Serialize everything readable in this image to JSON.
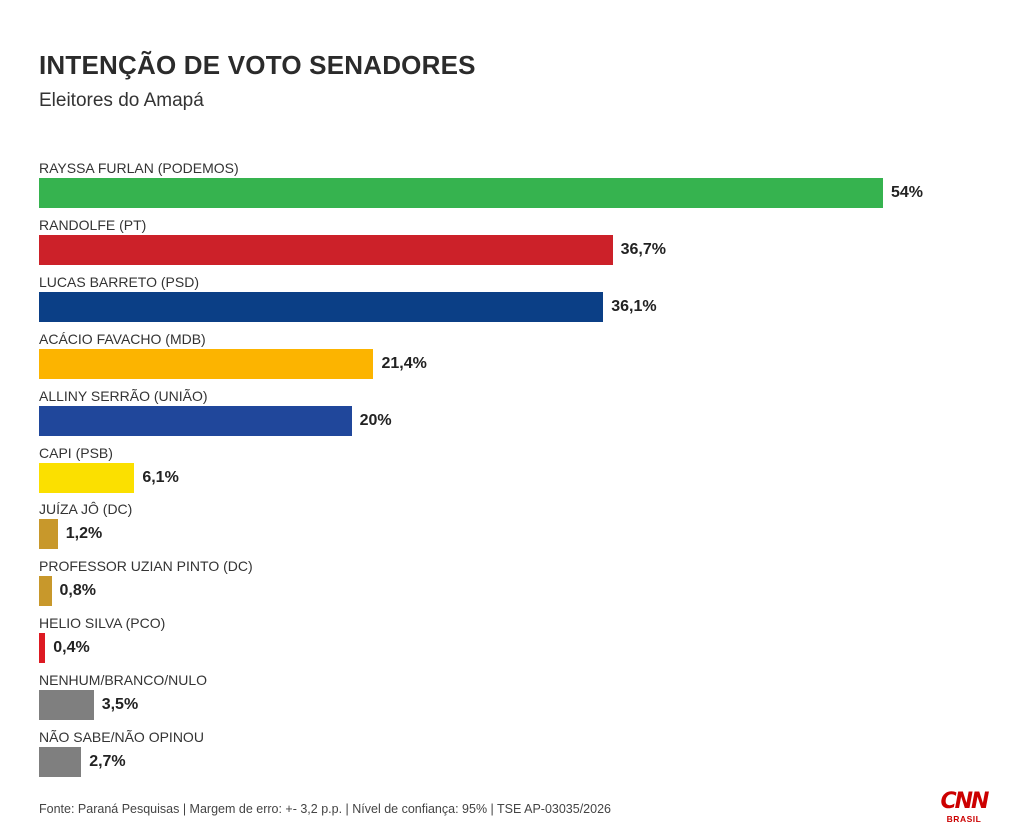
{
  "chart_data": {
    "type": "bar",
    "orientation": "horizontal",
    "title": "INTENÇÃO DE VOTO SENADORES",
    "subtitle": "Eleitores do Amapá",
    "categories": [
      "RAYSSA FURLAN (PODEMOS)",
      "RANDOLFE (PT)",
      "LUCAS BARRETO (PSD)",
      "ACÁCIO FAVACHO (MDB)",
      "ALLINY SERRÃO (UNIÃO)",
      "CAPI (PSB)",
      "JUÍZA JÔ (DC)",
      "PROFESSOR UZIAN PINTO (DC)",
      "HELIO SILVA (PCO)",
      "NENHUM/BRANCO/NULO",
      "NÃO SABE/NÃO OPINOU"
    ],
    "values": [
      54,
      36.7,
      36.1,
      21.4,
      20,
      6.1,
      1.2,
      0.8,
      0.4,
      3.5,
      2.7
    ],
    "value_labels": [
      "54%",
      "36,7%",
      "36,1%",
      "21,4%",
      "20%",
      "6,1%",
      "1,2%",
      "0,8%",
      "0,4%",
      "3,5%",
      "2,7%"
    ],
    "colors": [
      "#36b34f",
      "#cc2129",
      "#0b3f86",
      "#fcb400",
      "#20479b",
      "#fbe000",
      "#c8982b",
      "#c8982b",
      "#dd1a22",
      "#7f7f7f",
      "#7f7f7f"
    ],
    "xlim": [
      0,
      54
    ],
    "grid": false,
    "legend": "none"
  },
  "footer": {
    "source": "Fonte: Paraná Pesquisas | Margem de erro: +- 3,2 p.p. | Nível de confiança: 95% | TSE AP-03035/2026"
  },
  "logo": {
    "main": "CNN",
    "sub": "BRASIL",
    "color": "#cc0000"
  }
}
